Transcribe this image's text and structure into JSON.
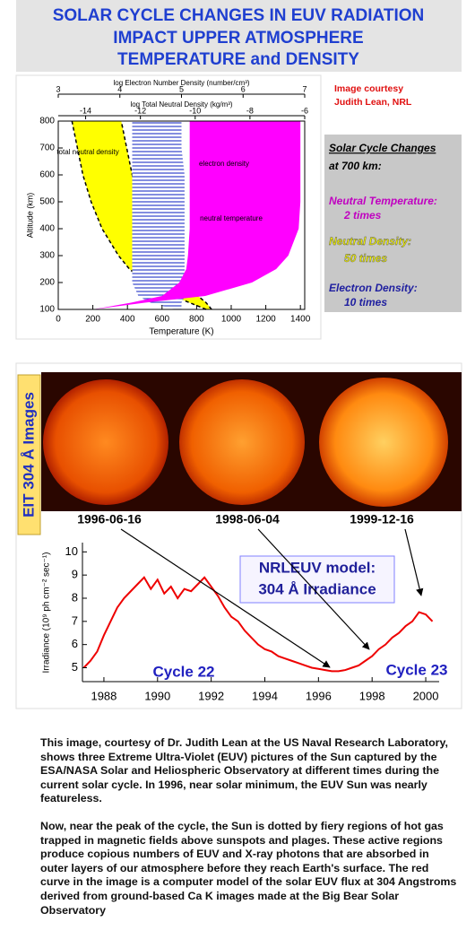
{
  "header": {
    "title_lines": [
      "SOLAR CYCLE CHANGES IN EUV RADIATION",
      "IMPACT UPPER ATMOSPHERE",
      "TEMPERATURE and DENSITY"
    ]
  },
  "sidebar": {
    "credit": [
      "Image courtesy",
      "Judith Lean, NRL"
    ],
    "heading": [
      "Solar Cycle Changes",
      "at 700 km:"
    ],
    "items": [
      {
        "label": "Neutral Temperature:",
        "value": "2 times",
        "color": "#c000c0"
      },
      {
        "label": "Neutral Density:",
        "value": "50 times",
        "color": "#f0f000"
      },
      {
        "label": "Electron Density:",
        "value": "10 times",
        "color": "#2020a0"
      }
    ]
  },
  "images": {
    "label": "EIT 304 Å Images",
    "dates": [
      "1996-06-16",
      "1998-06-04",
      "1999-12-16"
    ]
  },
  "chart_data": [
    {
      "type": "profile",
      "x_label": "Temperature (K)",
      "y_label": "Altitude (km)",
      "xlim": [
        0,
        1425
      ],
      "xticks": [
        0,
        200,
        400,
        600,
        800,
        1000,
        1200,
        1400
      ],
      "ylim": [
        100,
        800
      ],
      "yticks": [
        100,
        200,
        300,
        400,
        500,
        600,
        700,
        800
      ],
      "top_axes": [
        {
          "label": "log Electron Number Density (number/cm³)",
          "lim": [
            3,
            7
          ],
          "ticks": [
            3,
            4,
            5,
            6,
            7
          ]
        },
        {
          "label": "log Total Neutral Density (kg/m³)",
          "lim": [
            -15,
            -6
          ],
          "ticks": [
            -14,
            -12,
            -10,
            -8,
            -6
          ]
        }
      ],
      "y": [
        100,
        125,
        150,
        200,
        250,
        300,
        400,
        500,
        600,
        700,
        800
      ],
      "series": [
        {
          "name": "total neutral density",
          "color": "#ffff00",
          "axis": "top1",
          "dashed_edges": true,
          "low": [
            -9.6,
            -10.2,
            -10.8,
            -11.8,
            -12.4,
            -12.8,
            -13.4,
            -13.8,
            -14.1,
            -14.3,
            -14.5
          ],
          "high": [
            -9.4,
            -9.6,
            -9.9,
            -10.4,
            -10.8,
            -11.1,
            -11.6,
            -12.0,
            -12.3,
            -12.5,
            -12.7
          ]
        },
        {
          "name": "electron density",
          "color": "#3344cc",
          "axis": "top0",
          "hatch": true,
          "low": [
            4.9,
            4.5,
            4.3,
            4.2,
            4.2,
            4.2,
            4.2,
            4.2,
            4.2,
            4.2,
            4.2
          ],
          "high": [
            5.0,
            5.0,
            5.05,
            5.05,
            5.05,
            5.05,
            5.05,
            5.05,
            5.05,
            5.0,
            5.0
          ]
        },
        {
          "name": "neutral temperature",
          "color": "#ff00ff",
          "axis": "x",
          "low": [
            200,
            420,
            600,
            700,
            740,
            750,
            760,
            760,
            760,
            760,
            760
          ],
          "high": [
            200,
            500,
            850,
            1120,
            1260,
            1330,
            1390,
            1400,
            1400,
            1400,
            1400
          ]
        }
      ]
    },
    {
      "type": "line",
      "y_label": "Irradiance (10⁹ ph cm⁻² sec⁻¹)",
      "title_lines": [
        "NRLEUV model:",
        "304 Å Irradiance"
      ],
      "annotations": [
        "Cycle 22",
        "Cycle 23"
      ],
      "xlim": [
        1987.2,
        2000.5
      ],
      "xticks": [
        1988,
        1990,
        1992,
        1994,
        1996,
        1998,
        2000
      ],
      "ylim": [
        4.4,
        10.4
      ],
      "yticks": [
        5,
        6,
        7,
        8,
        9,
        10
      ],
      "x": [
        1987.25,
        1987.5,
        1987.75,
        1988,
        1988.25,
        1988.5,
        1988.75,
        1989,
        1989.25,
        1989.5,
        1989.75,
        1990,
        1990.25,
        1990.5,
        1990.75,
        1991,
        1991.25,
        1991.5,
        1991.75,
        1992,
        1992.25,
        1992.5,
        1992.75,
        1993,
        1993.25,
        1993.5,
        1993.75,
        1994,
        1994.25,
        1994.5,
        1994.75,
        1995,
        1995.25,
        1995.5,
        1995.75,
        1996,
        1996.25,
        1996.5,
        1996.75,
        1997,
        1997.25,
        1997.5,
        1997.75,
        1998,
        1998.25,
        1998.5,
        1998.75,
        1999,
        1999.25,
        1999.5,
        1999.75,
        2000,
        2000.25
      ],
      "series": [
        {
          "color": "#ee0000",
          "values": [
            5.0,
            5.3,
            5.7,
            6.4,
            7.0,
            7.6,
            8.0,
            8.3,
            8.6,
            8.9,
            8.4,
            8.8,
            8.2,
            8.5,
            8.0,
            8.4,
            8.3,
            8.6,
            8.9,
            8.5,
            8.1,
            7.6,
            7.2,
            7.0,
            6.6,
            6.3,
            6.0,
            5.8,
            5.7,
            5.5,
            5.4,
            5.3,
            5.2,
            5.1,
            5.0,
            4.95,
            4.9,
            4.85,
            4.85,
            4.9,
            5.0,
            5.1,
            5.3,
            5.5,
            5.8,
            6.0,
            6.3,
            6.5,
            6.8,
            7.0,
            7.4,
            7.3,
            7.0
          ]
        }
      ]
    }
  ],
  "caption": [
    "This image, courtesy of Dr. Judith Lean at the US Naval Research Laboratory, shows three Extreme Ultra-Violet (EUV) pictures of the Sun captured by the ESA/NASA Solar and Heliospheric Observatory at different times during the current solar cycle. In 1996, near solar minimum, the EUV Sun was nearly featureless.",
    "Now, near the peak of the cycle, the Sun is dotted by fiery regions of hot gas trapped in magnetic fields above sunspots and plages. These active regions produce copious numbers of EUV and X-ray photons that are absorbed in outer layers of our atmosphere before they reach Earth's surface. The red curve in the image is a computer model of the solar EUV flux at 304 Angstroms derived from ground-based Ca K images made at the Big Bear Solar Observatory"
  ]
}
